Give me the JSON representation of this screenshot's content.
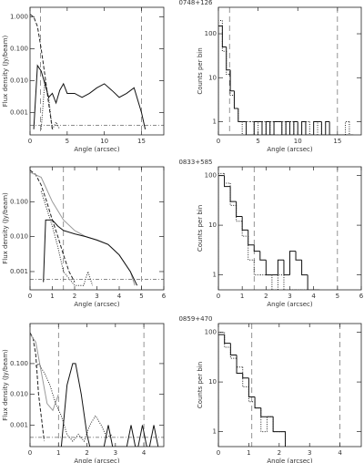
{
  "chart_data": [
    {
      "type": "line",
      "title": "0748+126",
      "xlabel": "Angle (arcsec)",
      "ylabel": "Flux density (Jy/beam)",
      "log_y": true,
      "xlim": [
        0,
        18
      ],
      "xticks": [
        0,
        5,
        10,
        15
      ],
      "ylim": [
        0.0002,
        2
      ],
      "yticks": [
        {
          "value": 1,
          "label": "1.000"
        },
        {
          "value": 0.1,
          "label": "0.100"
        },
        {
          "value": 0.01,
          "label": "0.010"
        },
        0.001
      ],
      "vlines": [
        1.4,
        15
      ],
      "hlines": [
        0.0004
      ],
      "series": [
        {
          "color": "#222222",
          "style": "dashed",
          "x": [
            0,
            0.5,
            1,
            1.5,
            2,
            2.5,
            3
          ],
          "values": [
            1.2,
            1,
            0.5,
            0.1,
            0.015,
            0.002,
            0.0003
          ]
        },
        {
          "color": "#111111",
          "style": "solid",
          "x": [
            0.5,
            1,
            1.5,
            2,
            2.5,
            3,
            3.5,
            4,
            4.5,
            5,
            6,
            7,
            8,
            9,
            10,
            11,
            12,
            13,
            14,
            15,
            15.5
          ],
          "values": [
            0.0003,
            0.03,
            0.02,
            0.008,
            0.003,
            0.004,
            0.002,
            0.005,
            0.008,
            0.004,
            0.004,
            0.003,
            0.004,
            0.006,
            0.008,
            0.005,
            0.003,
            0.004,
            0.006,
            0.001,
            0.0003
          ]
        },
        {
          "color": "#222222",
          "style": "dotted",
          "x": [
            1.5,
            2,
            2.5,
            3,
            3.5,
            4
          ],
          "values": [
            0.0003,
            0.01,
            0.003,
            0.0003,
            0.0005,
            0.0003
          ]
        }
      ]
    },
    {
      "type": "histogram",
      "xlabel": "Angle (arcsec)",
      "ylabel": "Counts per bin",
      "log_y": true,
      "xlim": [
        0,
        18
      ],
      "xticks": [
        0,
        5,
        10,
        15
      ],
      "ylim": [
        0.5,
        400
      ],
      "yticks": [
        1,
        10,
        100
      ],
      "vlines": [
        1.4,
        15
      ],
      "bins": [
        0,
        0.5,
        1,
        1.5,
        2,
        2.5,
        3,
        3.5,
        4,
        4.5,
        5,
        5.5,
        6,
        6.5,
        7,
        7.5,
        8,
        8.5,
        9,
        9.5,
        10,
        10.5,
        11,
        11.5,
        12,
        12.5,
        13,
        13.5,
        14,
        14.5,
        15,
        15.5,
        16,
        16.5,
        17
      ],
      "series": [
        {
          "color": "#111111",
          "style": "solid",
          "values": [
            150,
            50,
            15,
            5,
            2,
            1,
            1,
            0,
            0,
            1,
            1,
            0,
            1,
            0,
            1,
            1,
            0,
            1,
            0,
            1,
            0,
            1,
            0,
            0,
            1,
            1,
            0,
            1,
            0,
            0,
            0,
            0,
            0,
            0
          ]
        },
        {
          "color": "#222222",
          "style": "dotted",
          "values": [
            200,
            40,
            12,
            4,
            2,
            1,
            0,
            1,
            1,
            0,
            1,
            1,
            0,
            1,
            0,
            0,
            1,
            0,
            1,
            0,
            0,
            1,
            1,
            0,
            0,
            1,
            0,
            0,
            0,
            0,
            0,
            0,
            1,
            0
          ]
        }
      ]
    },
    {
      "type": "line",
      "title": "0833+585",
      "xlabel": "Angle (arcsec)",
      "ylabel": "Flux density (Jy/beam)",
      "log_y": true,
      "xlim": [
        0,
        6
      ],
      "xticks": [
        0,
        1,
        2,
        3,
        4,
        5,
        6
      ],
      "ylim": [
        0.0003,
        1
      ],
      "yticks": [
        {
          "value": 0.1,
          "label": "0.100"
        },
        {
          "value": 0.01,
          "label": "0.010"
        },
        0.001
      ],
      "vlines": [
        1.5,
        5
      ],
      "hlines": [
        0.0006
      ],
      "series": [
        {
          "color": "#222222",
          "style": "dashed",
          "x": [
            0,
            0.25,
            0.5,
            0.75,
            1,
            1.25,
            1.5,
            1.75,
            2
          ],
          "values": [
            0.8,
            0.6,
            0.3,
            0.1,
            0.03,
            0.01,
            0.003,
            0.001,
            0.0005
          ]
        },
        {
          "color": "#999999",
          "style": "solid",
          "x": [
            0,
            0.5,
            1,
            1.5,
            2,
            2.5,
            3,
            3.5,
            4,
            4.5,
            4.7
          ],
          "values": [
            0.7,
            0.5,
            0.1,
            0.03,
            0.015,
            0.01,
            0.008,
            0.006,
            0.003,
            0.001,
            0.0004
          ]
        },
        {
          "color": "#111111",
          "style": "solid",
          "x": [
            0.6,
            0.7,
            1,
            1.25,
            1.5,
            2,
            2.5,
            3,
            3.5,
            4,
            4.5,
            4.8
          ],
          "values": [
            0.0005,
            0.03,
            0.03,
            0.02,
            0.015,
            0.012,
            0.01,
            0.008,
            0.006,
            0.003,
            0.001,
            0.0004
          ]
        },
        {
          "color": "#222222",
          "style": "dotted",
          "x": [
            0.5,
            1,
            1.25,
            1.5,
            2,
            2.4,
            2.6,
            2.8
          ],
          "values": [
            0.2,
            0.02,
            0.005,
            0.001,
            0.0004,
            0.0004,
            0.001,
            0.0004
          ]
        }
      ]
    },
    {
      "type": "histogram",
      "xlabel": "Angle (arcsec)",
      "ylabel": "Counts per bin",
      "log_y": true,
      "xlim": [
        0,
        6
      ],
      "xticks": [
        0,
        1,
        2,
        3,
        4,
        5,
        6
      ],
      "ylim": [
        0.5,
        150
      ],
      "yticks": [
        1,
        10,
        100
      ],
      "vlines": [
        1.5,
        5
      ],
      "bins": [
        0,
        0.25,
        0.5,
        0.75,
        1,
        1.25,
        1.5,
        1.75,
        2,
        2.25,
        2.5,
        2.75,
        3,
        3.25,
        3.5,
        3.75,
        4,
        4.25
      ],
      "series": [
        {
          "color": "#111111",
          "style": "solid",
          "values": [
            100,
            60,
            30,
            15,
            8,
            4,
            3,
            2,
            1,
            1,
            2,
            1,
            3,
            2,
            1,
            0,
            0
          ]
        },
        {
          "color": "#222222",
          "style": "dotted",
          "values": [
            110,
            70,
            25,
            12,
            6,
            2,
            1,
            1,
            1,
            0,
            1,
            0,
            0,
            0,
            0,
            0,
            0
          ]
        }
      ]
    },
    {
      "type": "line",
      "title": "0859+470",
      "xlabel": "Angle (arcsec)",
      "ylabel": "Flux density (Jy/beam)",
      "log_y": true,
      "xlim": [
        0,
        4.7
      ],
      "xticks": [
        0,
        1,
        2,
        3,
        4
      ],
      "ylim": [
        0.0002,
        2
      ],
      "yticks": [
        {
          "value": 0.1,
          "label": "0.100"
        },
        {
          "value": 0.01,
          "label": "0.010"
        },
        0.001
      ],
      "vlines": [
        1,
        4
      ],
      "hlines": [
        0.0004
      ],
      "series": [
        {
          "color": "#222222",
          "style": "dashed",
          "x": [
            0,
            0.1,
            0.2,
            0.3,
            0.5
          ],
          "values": [
            1,
            0.7,
            0.2,
            0.01,
            0.0003
          ]
        },
        {
          "color": "#999999",
          "style": "solid",
          "x": [
            0,
            0.2,
            0.4,
            0.6,
            0.8,
            1
          ],
          "values": [
            0.9,
            0.5,
            0.05,
            0.005,
            0.003,
            0.01
          ]
        },
        {
          "color": "#222222",
          "style": "dotted",
          "x": [
            0.2,
            0.3,
            0.5,
            0.7,
            0.9,
            1.1,
            1.3,
            1.5,
            1.7,
            1.9,
            2.1,
            2.3,
            2.5,
            2.7,
            2.9
          ],
          "values": [
            0.08,
            0.1,
            0.05,
            0.02,
            0.005,
            0.002,
            0.0005,
            0.0003,
            0.0005,
            0.0003,
            0.001,
            0.002,
            0.001,
            0.0004,
            0.0005
          ]
        },
        {
          "color": "#111111",
          "style": "solid",
          "x": [
            1.1,
            1.3,
            1.5,
            1.6,
            1.8,
            2,
            2.1,
            2.6,
            2.75,
            2.9,
            3.4,
            3.55,
            3.7,
            3.8,
            3.95,
            4.1,
            4.2,
            4.35,
            4.5
          ],
          "values": [
            0.0002,
            0.02,
            0.1,
            0.1,
            0.01,
            0.0005,
            0.0002,
            0.0002,
            0.001,
            0.0002,
            0.0002,
            0.001,
            0.0002,
            0.0002,
            0.001,
            0.0002,
            0.0002,
            0.001,
            0.0002
          ]
        }
      ]
    },
    {
      "type": "histogram",
      "xlabel": "Angle (arcsec)",
      "ylabel": "Counts per bin",
      "log_y": true,
      "xlim": [
        0,
        4.7
      ],
      "xticks": [
        0,
        1,
        2,
        3,
        4
      ],
      "ylim": [
        0.5,
        150
      ],
      "yticks": [
        1,
        10,
        100
      ],
      "vlines": [
        1.1,
        4
      ],
      "bins": [
        0,
        0.2,
        0.4,
        0.6,
        0.8,
        1,
        1.2,
        1.4,
        1.6,
        1.8,
        2,
        2.2
      ],
      "series": [
        {
          "color": "#111111",
          "style": "solid",
          "values": [
            90,
            60,
            35,
            15,
            12,
            5,
            3,
            2,
            2,
            1,
            1
          ]
        },
        {
          "color": "#222222",
          "style": "dotted",
          "values": [
            100,
            50,
            30,
            20,
            8,
            4,
            3,
            1,
            2,
            1,
            1
          ]
        }
      ]
    }
  ]
}
